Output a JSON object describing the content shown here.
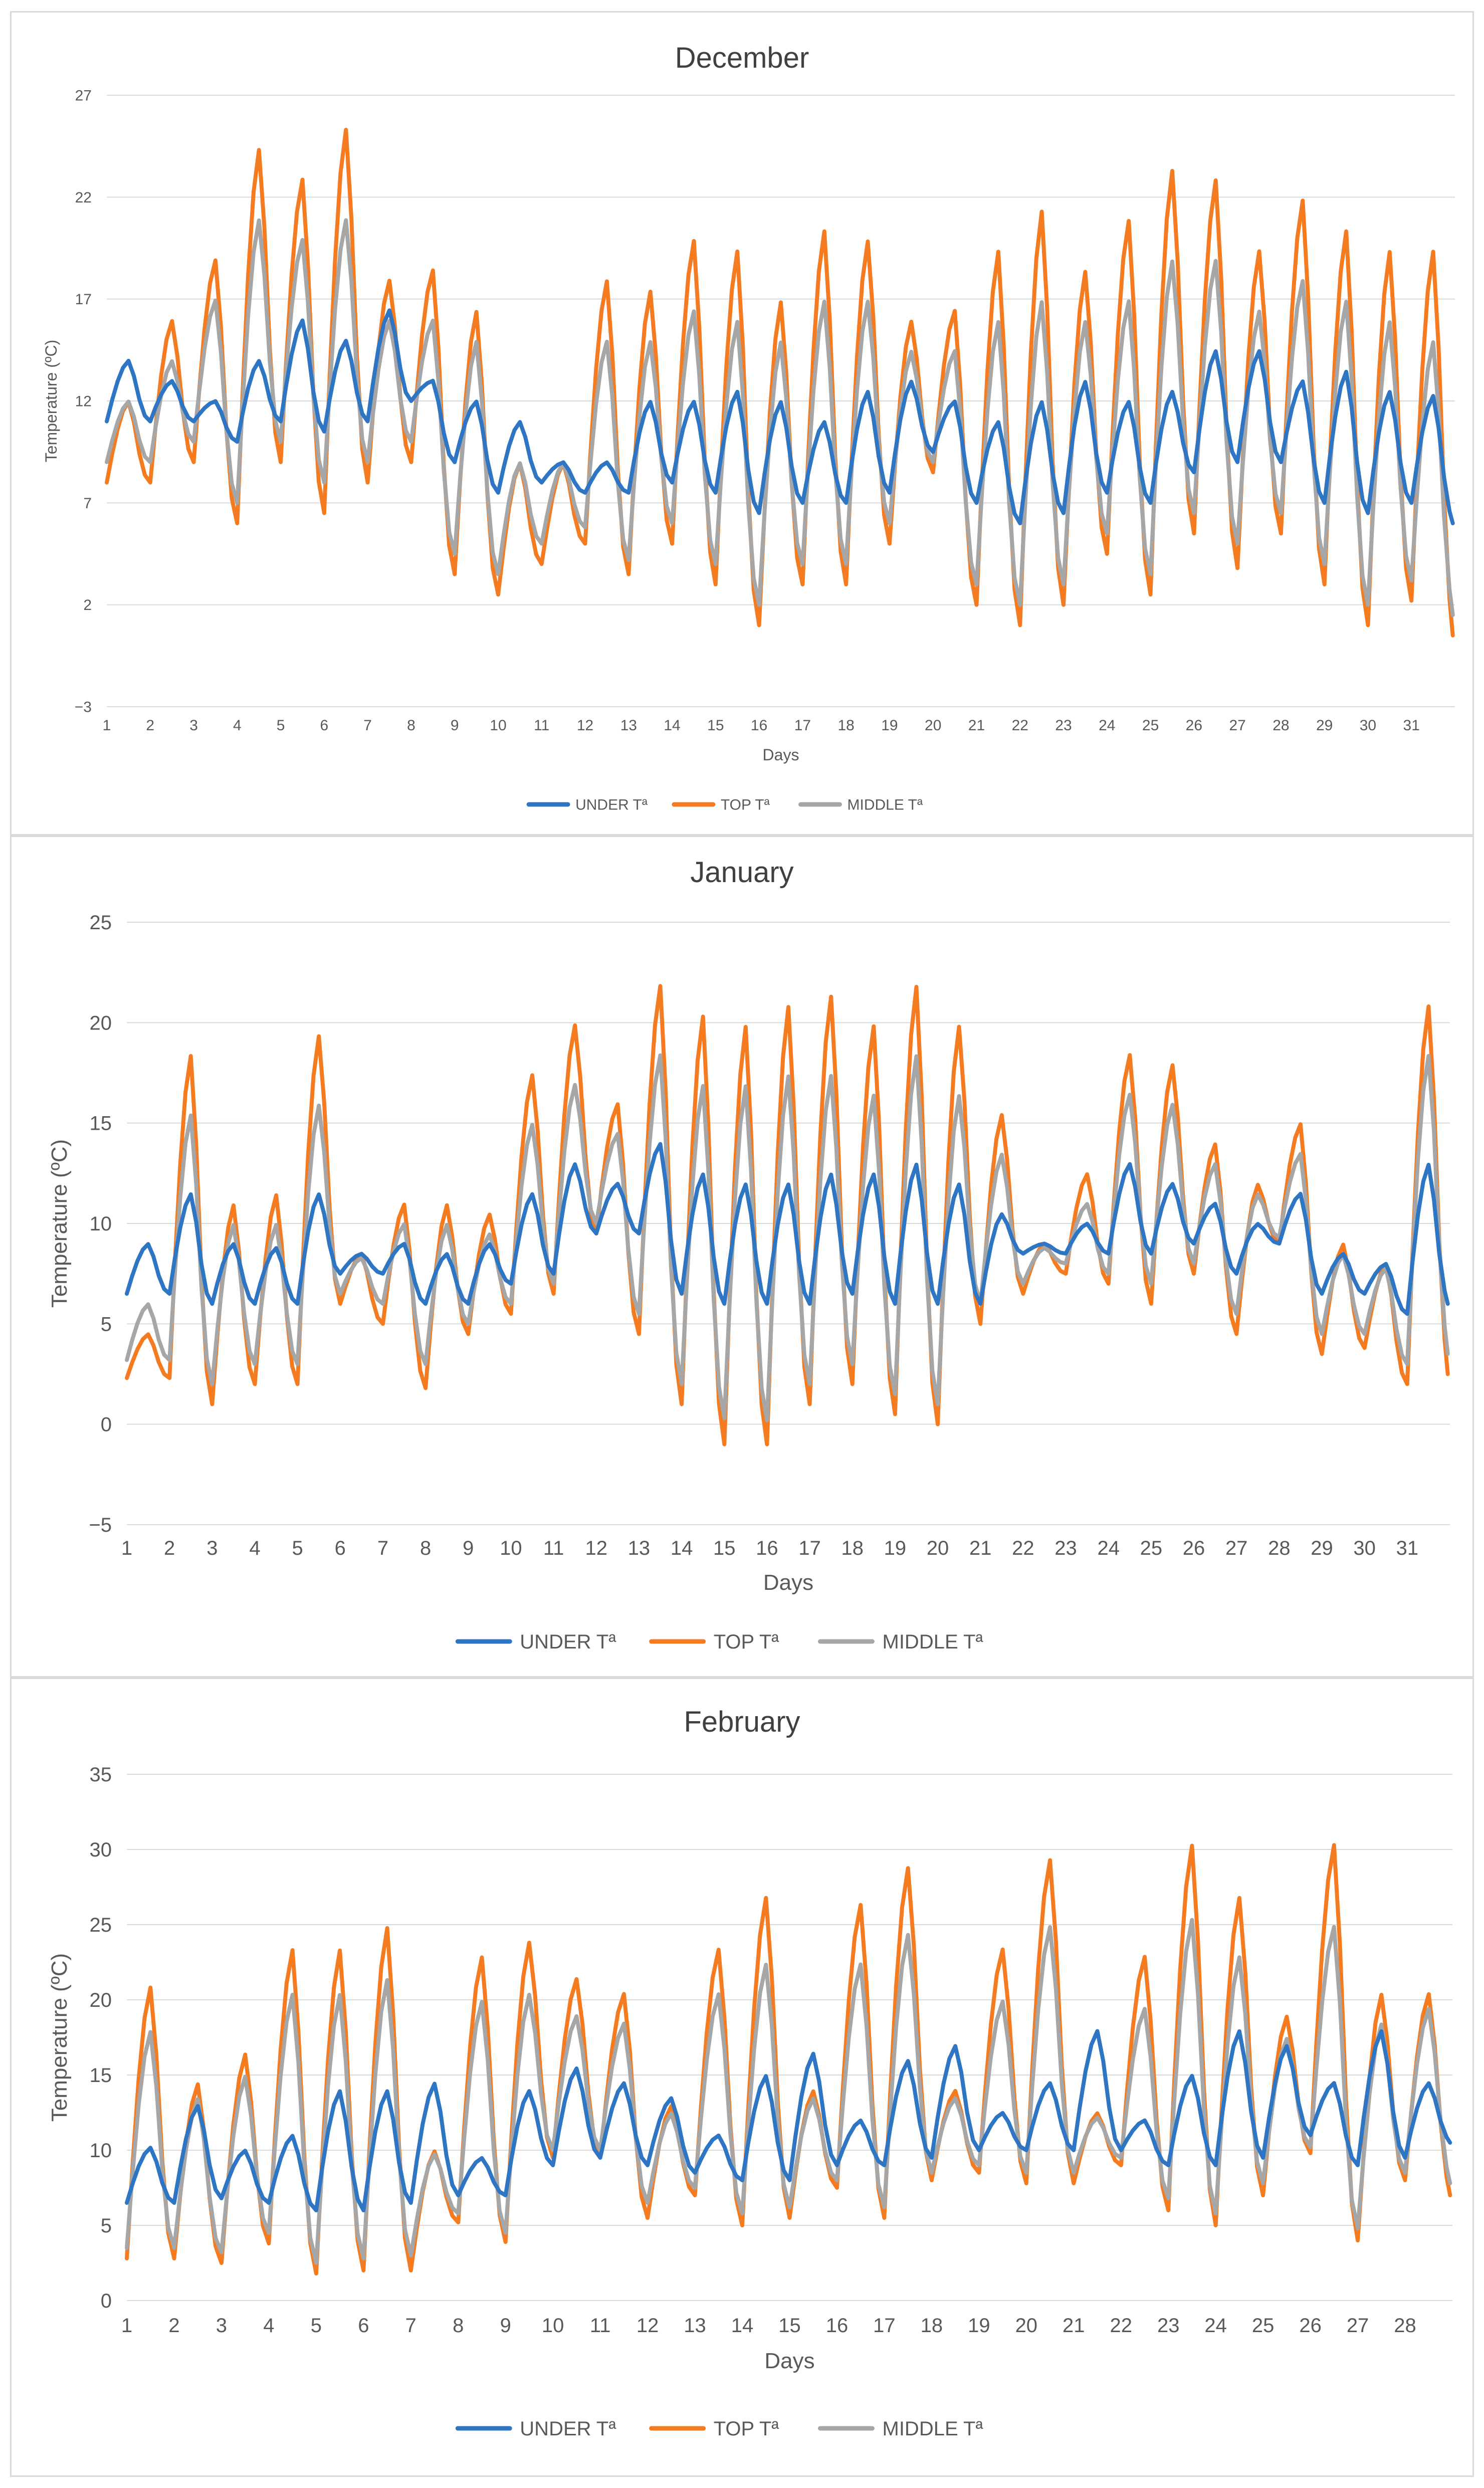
{
  "colors": {
    "under": "#2E75C4",
    "top": "#F47B20",
    "middle": "#A6A6A6",
    "grid": "#D9D9D9",
    "frame": "#D9D9D9"
  },
  "chart_data": [
    {
      "type": "line",
      "title": "December",
      "xlabel": "Days",
      "ylabel": "Temperature (ºC)",
      "ylim": [
        -3,
        27
      ],
      "yticks": [
        -3,
        2,
        7,
        12,
        17,
        22,
        27
      ],
      "xticks": [
        "1",
        "2",
        "3",
        "4",
        "5",
        "6",
        "7",
        "8",
        "9",
        "10",
        "11",
        "12",
        "13",
        "14",
        "15",
        "16",
        "17",
        "18",
        "19",
        "20",
        "21",
        "22",
        "23",
        "24",
        "25",
        "26",
        "27",
        "28",
        "29",
        "30",
        "31"
      ],
      "legend_position": "bottom",
      "daily": {
        "under_max": [
          14,
          13,
          12,
          14,
          16,
          15,
          16.5,
          13,
          12,
          11,
          9,
          9,
          12,
          12,
          12.5,
          12,
          11,
          12.5,
          13,
          12,
          11,
          12,
          13,
          12,
          12.5,
          14.5,
          14.5,
          13,
          13.5,
          12.5,
          12.3
        ],
        "under_min": [
          11,
          11,
          10,
          11,
          10.5,
          11,
          12,
          9,
          7.5,
          8,
          7.5,
          7.5,
          8,
          7.5,
          6.5,
          7,
          7,
          7.5,
          9.5,
          7,
          6,
          6.5,
          7.5,
          7,
          8.5,
          9,
          9,
          7,
          6.5,
          7,
          6
        ],
        "top_max": [
          12,
          16,
          19,
          24.5,
          23,
          25.5,
          18,
          18.5,
          16.5,
          9,
          9,
          18,
          17.5,
          20,
          19.5,
          17,
          20.5,
          20,
          16,
          16.5,
          19.5,
          21.5,
          18.5,
          21,
          23.5,
          23,
          19.5,
          22,
          20.5,
          19.5,
          19.5
        ],
        "top_min": [
          8,
          9,
          6,
          9,
          6.5,
          8,
          9,
          3.5,
          2.5,
          4,
          5,
          3.5,
          5,
          3,
          1,
          3,
          3,
          5,
          8.5,
          2,
          1,
          2,
          4.5,
          2.5,
          5.5,
          3.8,
          5.5,
          3,
          1,
          2.2,
          0.5
        ],
        "middle_max": [
          12,
          14,
          17,
          21,
          20,
          21,
          16,
          16,
          15,
          9,
          9,
          15,
          15,
          16.5,
          16,
          15,
          17,
          17,
          14.5,
          14.5,
          16,
          17,
          16,
          17,
          19,
          19,
          16.5,
          18,
          17,
          16,
          15
        ],
        "middle_min": [
          9,
          10,
          7,
          10,
          8,
          9,
          10,
          4.5,
          3.5,
          5,
          5.8,
          4.2,
          6,
          4,
          2,
          4,
          4,
          6,
          9,
          3,
          2,
          3,
          5.5,
          3.5,
          6.5,
          5,
          6.5,
          4,
          2,
          3.2,
          1.5
        ]
      }
    },
    {
      "type": "line",
      "title": "January",
      "xlabel": "Days",
      "ylabel": "Temperature (ºC)",
      "ylim": [
        -5,
        25
      ],
      "yticks": [
        -5,
        0,
        5,
        10,
        15,
        20,
        25
      ],
      "xticks": [
        "1",
        "2",
        "3",
        "4",
        "5",
        "6",
        "7",
        "8",
        "9",
        "10",
        "11",
        "12",
        "13",
        "14",
        "15",
        "16",
        "17",
        "18",
        "19",
        "20",
        "21",
        "22",
        "23",
        "24",
        "25",
        "26",
        "27",
        "28",
        "29",
        "30",
        "31"
      ],
      "legend_position": "bottom",
      "daily": {
        "under_max": [
          9,
          11.5,
          9,
          8.8,
          11.5,
          8.5,
          9,
          8.5,
          9,
          11.5,
          13,
          12,
          14,
          12.5,
          12,
          12,
          12.5,
          12.5,
          13,
          12,
          10.5,
          9,
          10,
          13,
          12,
          11,
          10,
          11.5,
          8.5,
          8,
          13
        ],
        "under_min": [
          6.5,
          6,
          6,
          6,
          7.5,
          7.5,
          6,
          6,
          7,
          7.5,
          9.5,
          9.5,
          6.5,
          6,
          6,
          6,
          6.5,
          6,
          6,
          6,
          8.5,
          8.5,
          8.5,
          8.5,
          9,
          7.5,
          9,
          6.5,
          6.5,
          5.5,
          6
        ],
        "top_max": [
          4.5,
          18.5,
          11,
          11.5,
          19.5,
          8.5,
          11,
          11,
          10.5,
          17.5,
          20,
          16,
          22,
          20.5,
          20,
          21,
          21.5,
          20,
          22,
          20,
          15.5,
          9,
          12.5,
          18.5,
          18,
          14,
          12,
          15,
          9,
          8,
          21
        ],
        "top_min": [
          2.3,
          1,
          2,
          2,
          6,
          5,
          1.8,
          4.5,
          5.5,
          6.5,
          9.5,
          4.5,
          1,
          -1,
          -1,
          1,
          2,
          0.5,
          0,
          5,
          6.5,
          7.5,
          7,
          6,
          7.5,
          4.5,
          9,
          3.5,
          3.8,
          2,
          2.5
        ],
        "middle_max": [
          6,
          15.5,
          10,
          10,
          16,
          8.3,
          10,
          10,
          9.5,
          15,
          17,
          14.5,
          18.5,
          17,
          17,
          17.5,
          17.5,
          16.5,
          18.5,
          16.5,
          13.5,
          8.8,
          11,
          16.5,
          16,
          13,
          11.5,
          13.5,
          8.5,
          7.8,
          18.5
        ],
        "middle_min": [
          3.2,
          2,
          3,
          3,
          6.5,
          6,
          3,
          5,
          6,
          7,
          10,
          5.5,
          2,
          0.3,
          0.2,
          2,
          3,
          1.5,
          1,
          6,
          7,
          8,
          7.5,
          7,
          8,
          5.5,
          9.3,
          4.5,
          4.5,
          3,
          3.5
        ]
      }
    },
    {
      "type": "line",
      "title": "February",
      "xlabel": "Days",
      "ylabel": "Temperature (ºC)",
      "ylim": [
        0,
        35
      ],
      "yticks": [
        0,
        5,
        10,
        15,
        20,
        25,
        30,
        35
      ],
      "xticks": [
        "1",
        "2",
        "3",
        "4",
        "5",
        "6",
        "7",
        "8",
        "9",
        "10",
        "11",
        "12",
        "13",
        "14",
        "15",
        "16",
        "17",
        "18",
        "19",
        "20",
        "21",
        "22",
        "23",
        "24",
        "25",
        "26",
        "27",
        "28"
      ],
      "legend_position": "bottom",
      "daily": {
        "under_max": [
          10.2,
          13,
          10,
          11,
          14,
          14,
          14.5,
          9.5,
          14,
          15.5,
          14.5,
          13.5,
          11,
          15,
          16.5,
          12,
          16,
          17,
          12.5,
          14.5,
          18,
          12,
          15,
          18,
          17,
          14.5,
          18,
          14.5
        ],
        "under_min": [
          6.5,
          6.8,
          6.5,
          6,
          6,
          6.5,
          7,
          7,
          9,
          9.5,
          9,
          8.5,
          8,
          8,
          9,
          9,
          9.5,
          10,
          10,
          10,
          10,
          9,
          9,
          9.5,
          11,
          9,
          9.5,
          10.5
        ],
        "top_max": [
          21,
          14.5,
          16.5,
          23.5,
          23.5,
          25,
          10,
          23,
          24,
          21.5,
          20.5,
          13,
          23.5,
          27,
          14,
          26.5,
          29,
          14,
          23.5,
          29.5,
          12.5,
          23,
          30.5,
          27,
          19,
          30.5,
          20.5,
          20.5
        ],
        "top_min": [
          2.8,
          2.5,
          3.8,
          1.8,
          2,
          2,
          5.2,
          3.9,
          9.5,
          9.5,
          5.5,
          7,
          5,
          5.5,
          7.5,
          5.5,
          8,
          8.5,
          7.8,
          7.8,
          9,
          6,
          5,
          7,
          9.8,
          4,
          8,
          7
        ],
        "middle_max": [
          18,
          13.5,
          15,
          20.5,
          20.5,
          21.5,
          9.8,
          20,
          20.5,
          19,
          18.5,
          12.5,
          20.5,
          22.5,
          13.5,
          22.5,
          24.5,
          13.5,
          20,
          25,
          12.2,
          19.5,
          25.5,
          23,
          17.5,
          25,
          18.5,
          19.5
        ],
        "middle_min": [
          3.5,
          3.2,
          4.5,
          2.5,
          2.8,
          3,
          5.8,
          4.5,
          10,
          10,
          6.5,
          7.5,
          5.8,
          6.2,
          8,
          6.2,
          8.5,
          9,
          8.5,
          8.5,
          9.5,
          6.8,
          5.8,
          7.8,
          10.2,
          4.8,
          8.5,
          7.8
        ]
      }
    }
  ],
  "legend": {
    "under": "UNDER Tª",
    "top": "TOP Tª",
    "middle": "MIDDLE Tª"
  }
}
